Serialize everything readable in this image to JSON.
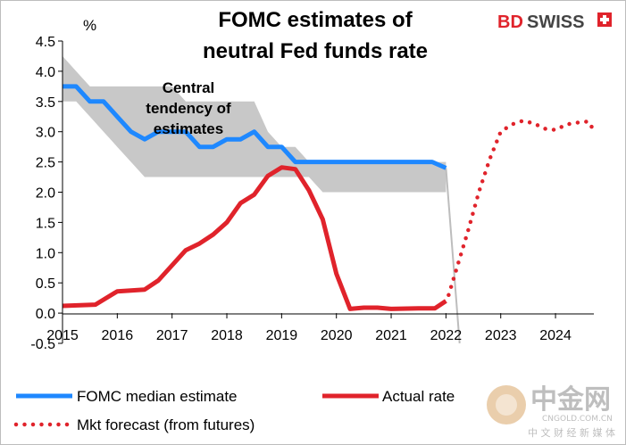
{
  "chart_data": {
    "type": "line",
    "title_lines": [
      "FOMC estimates of",
      "neutral Fed funds rate"
    ],
    "ylabel": "%",
    "xlabel": "",
    "ylim": [
      -0.5,
      4.5
    ],
    "xlim": [
      2015,
      2024.7
    ],
    "y_ticks": [
      "4.5",
      "4.0",
      "3.5",
      "3.0",
      "2.5",
      "2.0",
      "1.5",
      "1.0",
      "0.5",
      "0.0",
      "-0.5"
    ],
    "x_ticks": [
      "2015",
      "2016",
      "2017",
      "2018",
      "2019",
      "2020",
      "2021",
      "2022",
      "2023",
      "2024"
    ],
    "annotation_lines": [
      "Central",
      "tendency of",
      "estimates"
    ],
    "central_tendency_band": {
      "x": [
        2015,
        2015.25,
        2015.5,
        2015.75,
        2016,
        2016.25,
        2016.5,
        2016.75,
        2017,
        2017.25,
        2017.5,
        2017.75,
        2018,
        2018.25,
        2018.5,
        2018.75,
        2019,
        2019.25,
        2019.5,
        2019.75,
        2020,
        2021,
        2022
      ],
      "upper": [
        4.25,
        4.0,
        3.75,
        3.75,
        3.75,
        3.75,
        3.75,
        3.75,
        3.75,
        3.5,
        3.5,
        3.5,
        3.5,
        3.5,
        3.5,
        3.0,
        2.75,
        2.75,
        2.5,
        2.5,
        2.5,
        2.5,
        2.5
      ],
      "lower": [
        3.5,
        3.5,
        3.25,
        3.0,
        2.75,
        2.5,
        2.25,
        2.25,
        2.25,
        2.25,
        2.25,
        2.25,
        2.25,
        2.25,
        2.25,
        2.25,
        2.25,
        2.25,
        2.25,
        2.0,
        2.0,
        2.0,
        2.0
      ]
    },
    "series": [
      {
        "name": "FOMC median estimate",
        "color": "#1e88ff",
        "style": "solid",
        "x": [
          2015,
          2015.25,
          2015.5,
          2015.75,
          2016,
          2016.25,
          2016.5,
          2016.75,
          2017,
          2017.25,
          2017.5,
          2017.75,
          2018,
          2018.25,
          2018.5,
          2018.75,
          2019,
          2019.25,
          2019.5,
          2019.75,
          2020,
          2020.5,
          2021,
          2021.5,
          2021.75,
          2022
        ],
        "values": [
          3.75,
          3.75,
          3.5,
          3.5,
          3.25,
          3.0,
          2.875,
          3.0,
          3.0,
          3.0,
          2.75,
          2.75,
          2.875,
          2.875,
          3.0,
          2.75,
          2.75,
          2.5,
          2.5,
          2.5,
          2.5,
          2.5,
          2.5,
          2.5,
          2.5,
          2.4
        ]
      },
      {
        "name": "Actual rate",
        "color": "#e0232b",
        "style": "solid",
        "x": [
          2015,
          2015.6,
          2016,
          2016.5,
          2016.75,
          2017,
          2017.25,
          2017.5,
          2017.75,
          2018,
          2018.25,
          2018.5,
          2018.75,
          2019,
          2019.25,
          2019.5,
          2019.75,
          2020,
          2020.25,
          2020.5,
          2020.75,
          2021,
          2021.5,
          2021.8,
          2022
        ],
        "values": [
          0.12,
          0.14,
          0.36,
          0.39,
          0.54,
          0.79,
          1.04,
          1.15,
          1.3,
          1.5,
          1.82,
          1.96,
          2.27,
          2.41,
          2.38,
          2.03,
          1.55,
          0.65,
          0.07,
          0.09,
          0.09,
          0.07,
          0.08,
          0.08,
          0.2
        ]
      },
      {
        "name": "Mkt forecast (from futures)",
        "color": "#e0232b",
        "style": "dotted",
        "x": [
          2022.05,
          2022.2,
          2022.4,
          2022.6,
          2022.8,
          2023,
          2023.2,
          2023.4,
          2023.6,
          2023.8,
          2024,
          2024.2,
          2024.4,
          2024.6,
          2024.7
        ],
        "values": [
          0.3,
          0.75,
          1.35,
          2.0,
          2.55,
          3.0,
          3.12,
          3.18,
          3.14,
          3.05,
          3.03,
          3.12,
          3.15,
          3.17,
          3.02
        ]
      }
    ],
    "extra_line": {
      "description": "vertical drop line",
      "color": "#bdbdbd",
      "x": [
        2022,
        2022.25
      ],
      "values": [
        2.4,
        -0.5
      ]
    }
  },
  "legend": [
    {
      "label": "FOMC median estimate",
      "style": "solid",
      "color": "#1e88ff"
    },
    {
      "label": "Actual rate",
      "style": "solid",
      "color": "#e0232b"
    },
    {
      "label": "Mkt forecast (from futures)",
      "style": "dotted",
      "color": "#e0232b"
    }
  ],
  "brand": {
    "part1": "BD",
    "part2": "SWISS",
    "color_red": "#e0232b",
    "color_dark": "#444444"
  },
  "watermark": {
    "main": "中金网",
    "sub": "CNGOLD.COM.CN",
    "sub2": "中 文 财 经 新 媒 体"
  }
}
